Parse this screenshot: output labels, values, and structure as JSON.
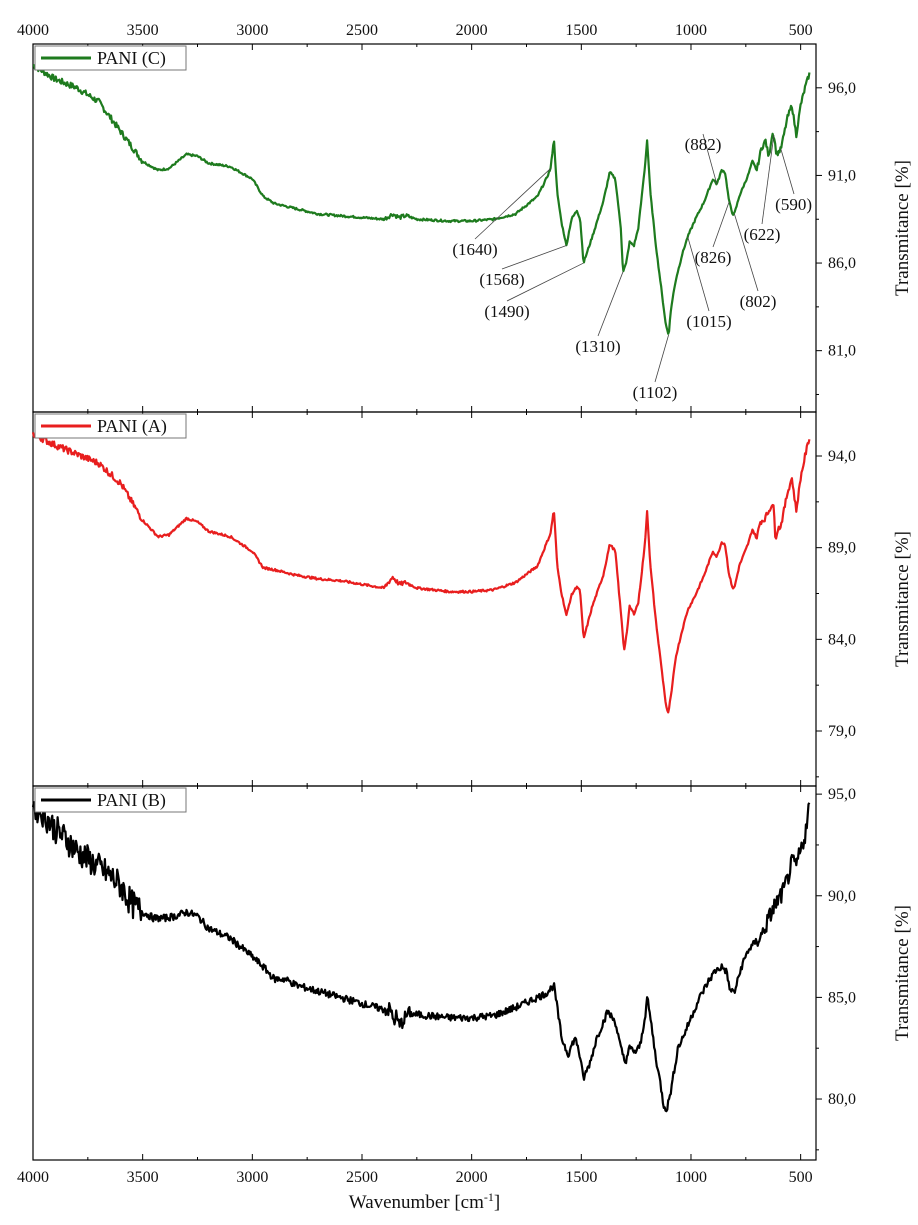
{
  "chart_data": [
    {
      "type": "line",
      "panel": "top",
      "series": [
        {
          "name": "PANI (C)",
          "color": "#1e7b1e"
        }
      ],
      "ylabel": "Transmitance [%]",
      "xlim": [
        4000,
        430
      ],
      "ylim": [
        77.5,
        98.5
      ],
      "yticks": [
        96.0,
        91.0,
        86.0,
        81.0
      ],
      "ytick_labels": [
        "96,0",
        "91,0",
        "86,0",
        "81,0"
      ],
      "legend_placement": "top-left",
      "points": [
        [
          4000,
          97.3
        ],
        [
          3900,
          96.5
        ],
        [
          3800,
          96.0
        ],
        [
          3700,
          95.2
        ],
        [
          3600,
          93.5
        ],
        [
          3500,
          91.8
        ],
        [
          3430,
          91.3
        ],
        [
          3380,
          91.4
        ],
        [
          3300,
          92.2
        ],
        [
          3250,
          92.1
        ],
        [
          3200,
          91.7
        ],
        [
          3100,
          91.5
        ],
        [
          3000,
          90.8
        ],
        [
          2950,
          89.8
        ],
        [
          2900,
          89.4
        ],
        [
          2800,
          89.1
        ],
        [
          2700,
          88.8
        ],
        [
          2600,
          88.7
        ],
        [
          2500,
          88.6
        ],
        [
          2400,
          88.5
        ],
        [
          2360,
          88.8
        ],
        [
          2330,
          88.6
        ],
        [
          2300,
          88.7
        ],
        [
          2250,
          88.5
        ],
        [
          2100,
          88.4
        ],
        [
          2000,
          88.4
        ],
        [
          1900,
          88.5
        ],
        [
          1800,
          88.8
        ],
        [
          1700,
          89.8
        ],
        [
          1660,
          90.8
        ],
        [
          1640,
          91.4
        ],
        [
          1625,
          93.1
        ],
        [
          1610,
          90.0
        ],
        [
          1590,
          88.3
        ],
        [
          1568,
          87.0
        ],
        [
          1545,
          88.5
        ],
        [
          1520,
          89.0
        ],
        [
          1505,
          88.5
        ],
        [
          1490,
          86.0
        ],
        [
          1450,
          87.5
        ],
        [
          1400,
          89.5
        ],
        [
          1370,
          91.2
        ],
        [
          1345,
          90.8
        ],
        [
          1320,
          88.0
        ],
        [
          1310,
          85.5
        ],
        [
          1295,
          86.0
        ],
        [
          1280,
          87.2
        ],
        [
          1260,
          87.0
        ],
        [
          1240,
          88.0
        ],
        [
          1210,
          91.5
        ],
        [
          1200,
          93.0
        ],
        [
          1185,
          90.0
        ],
        [
          1160,
          87.0
        ],
        [
          1130,
          84.0
        ],
        [
          1115,
          82.5
        ],
        [
          1102,
          81.9
        ],
        [
          1090,
          83.5
        ],
        [
          1070,
          85.0
        ],
        [
          1040,
          86.5
        ],
        [
          1015,
          87.5
        ],
        [
          980,
          88.5
        ],
        [
          940,
          89.5
        ],
        [
          900,
          90.8
        ],
        [
          882,
          90.5
        ],
        [
          860,
          91.3
        ],
        [
          845,
          91.2
        ],
        [
          826,
          89.5
        ],
        [
          810,
          88.8
        ],
        [
          802,
          88.8
        ],
        [
          780,
          89.8
        ],
        [
          740,
          91.0
        ],
        [
          720,
          91.8
        ],
        [
          700,
          91.3
        ],
        [
          680,
          92.5
        ],
        [
          660,
          93.0
        ],
        [
          645,
          92.0
        ],
        [
          630,
          93.4
        ],
        [
          622,
          93.3
        ],
        [
          610,
          92.2
        ],
        [
          590,
          92.5
        ],
        [
          560,
          94.3
        ],
        [
          540,
          95.0
        ],
        [
          520,
          93.3
        ],
        [
          500,
          95.0
        ],
        [
          480,
          96.0
        ],
        [
          460,
          96.8
        ]
      ],
      "annotations": [
        {
          "label": "(1640)",
          "x": 1640
        },
        {
          "label": "(1568)",
          "x": 1568
        },
        {
          "label": "(1490)",
          "x": 1490
        },
        {
          "label": "(1310)",
          "x": 1310
        },
        {
          "label": "(1102)",
          "x": 1102
        },
        {
          "label": "(1015)",
          "x": 1015
        },
        {
          "label": "(882)",
          "x": 882
        },
        {
          "label": "(826)",
          "x": 826
        },
        {
          "label": "(802)",
          "x": 802
        },
        {
          "label": "(622)",
          "x": 622
        },
        {
          "label": "(590)",
          "x": 590
        }
      ]
    },
    {
      "type": "line",
      "panel": "middle",
      "series": [
        {
          "name": "PANI (A)",
          "color": "#e81e1e"
        }
      ],
      "ylabel": "Transmitance [%]",
      "xlim": [
        4000,
        430
      ],
      "ylim": [
        76.0,
        96.4
      ],
      "yticks": [
        94.0,
        89.0,
        84.0,
        79.0
      ],
      "ytick_labels": [
        "94,0",
        "89,0",
        "84,0",
        "79,0"
      ],
      "legend_placement": "top-left",
      "points": [
        [
          4000,
          95.2
        ],
        [
          3900,
          94.6
        ],
        [
          3800,
          94.1
        ],
        [
          3700,
          93.6
        ],
        [
          3600,
          92.5
        ],
        [
          3500,
          90.5
        ],
        [
          3430,
          89.6
        ],
        [
          3380,
          89.7
        ],
        [
          3300,
          90.6
        ],
        [
          3250,
          90.4
        ],
        [
          3200,
          89.9
        ],
        [
          3100,
          89.6
        ],
        [
          3000,
          88.8
        ],
        [
          2950,
          87.9
        ],
        [
          2900,
          87.8
        ],
        [
          2800,
          87.5
        ],
        [
          2700,
          87.3
        ],
        [
          2600,
          87.2
        ],
        [
          2500,
          87.0
        ],
        [
          2400,
          86.8
        ],
        [
          2360,
          87.4
        ],
        [
          2330,
          87.0
        ],
        [
          2300,
          87.1
        ],
        [
          2250,
          86.8
        ],
        [
          2100,
          86.6
        ],
        [
          2000,
          86.6
        ],
        [
          1900,
          86.7
        ],
        [
          1800,
          87.1
        ],
        [
          1700,
          88.0
        ],
        [
          1660,
          89.2
        ],
        [
          1640,
          89.8
        ],
        [
          1625,
          91.1
        ],
        [
          1610,
          88.0
        ],
        [
          1590,
          86.5
        ],
        [
          1568,
          85.3
        ],
        [
          1545,
          86.4
        ],
        [
          1520,
          86.9
        ],
        [
          1505,
          86.6
        ],
        [
          1490,
          84.0
        ],
        [
          1450,
          85.8
        ],
        [
          1400,
          87.5
        ],
        [
          1370,
          89.2
        ],
        [
          1345,
          88.8
        ],
        [
          1320,
          85.5
        ],
        [
          1305,
          83.4
        ],
        [
          1290,
          84.6
        ],
        [
          1280,
          85.8
        ],
        [
          1260,
          85.4
        ],
        [
          1240,
          86.0
        ],
        [
          1210,
          89.2
        ],
        [
          1200,
          91.0
        ],
        [
          1185,
          88.0
        ],
        [
          1160,
          85.0
        ],
        [
          1130,
          82.0
        ],
        [
          1115,
          80.5
        ],
        [
          1105,
          79.9
        ],
        [
          1090,
          81.0
        ],
        [
          1070,
          83.0
        ],
        [
          1040,
          84.5
        ],
        [
          1015,
          85.6
        ],
        [
          980,
          86.4
        ],
        [
          940,
          87.5
        ],
        [
          900,
          88.8
        ],
        [
          882,
          88.5
        ],
        [
          860,
          89.3
        ],
        [
          845,
          89.2
        ],
        [
          826,
          87.5
        ],
        [
          810,
          86.8
        ],
        [
          802,
          86.8
        ],
        [
          780,
          88.0
        ],
        [
          740,
          89.2
        ],
        [
          720,
          90.0
        ],
        [
          700,
          89.5
        ],
        [
          685,
          90.4
        ],
        [
          672,
          90.5
        ],
        [
          670,
          84.0
        ],
        [
          668,
          90.5
        ],
        [
          645,
          91.0
        ],
        [
          630,
          91.4
        ],
        [
          622,
          91.1
        ],
        [
          615,
          89.5
        ],
        [
          605,
          90.0
        ],
        [
          590,
          90.2
        ],
        [
          560,
          92.0
        ],
        [
          540,
          92.8
        ],
        [
          520,
          91.0
        ],
        [
          500,
          92.8
        ],
        [
          480,
          94.0
        ],
        [
          460,
          95.0
        ]
      ]
    },
    {
      "type": "line",
      "panel": "bottom",
      "series": [
        {
          "name": "PANI (B)",
          "color": "#000000"
        }
      ],
      "xlabel": "Wavenumber [cm",
      "xlabel_superscript": "-1",
      "xlabel_suffix": "]",
      "ylabel": "Transmitance [%]",
      "xlim": [
        4000,
        430
      ],
      "ylim": [
        77.0,
        95.4
      ],
      "yticks": [
        95.0,
        90.0,
        85.0,
        80.0
      ],
      "ytick_labels": [
        "95,0",
        "90,0",
        "85,0",
        "80,0"
      ],
      "xticks": [
        4000,
        3500,
        3000,
        2500,
        2000,
        1500,
        1000,
        500
      ],
      "xtick_labels": [
        "4000",
        "3500",
        "3000",
        "2500",
        "2000",
        "1500",
        "1000",
        "500"
      ],
      "legend_placement": "top-left",
      "points": [
        [
          4000,
          94.5
        ],
        [
          3950,
          94.0
        ],
        [
          3900,
          93.3
        ],
        [
          3850,
          92.8
        ],
        [
          3800,
          92.2
        ],
        [
          3750,
          91.8
        ],
        [
          3700,
          91.4
        ],
        [
          3650,
          91.0
        ],
        [
          3600,
          90.5
        ],
        [
          3550,
          89.6
        ],
        [
          3500,
          89.2
        ],
        [
          3450,
          88.9
        ],
        [
          3400,
          88.9
        ],
        [
          3350,
          89.0
        ],
        [
          3300,
          89.2
        ],
        [
          3250,
          89.0
        ],
        [
          3200,
          88.4
        ],
        [
          3100,
          87.9
        ],
        [
          3000,
          87.0
        ],
        [
          2950,
          86.5
        ],
        [
          2900,
          85.9
        ],
        [
          2850,
          85.9
        ],
        [
          2800,
          85.6
        ],
        [
          2700,
          85.3
        ],
        [
          2600,
          85.0
        ],
        [
          2500,
          84.7
        ],
        [
          2400,
          84.4
        ],
        [
          2370,
          84.4
        ],
        [
          2355,
          83.8
        ],
        [
          2345,
          84.1
        ],
        [
          2330,
          83.6
        ],
        [
          2310,
          83.9
        ],
        [
          2290,
          84.2
        ],
        [
          2200,
          84.1
        ],
        [
          2100,
          84.0
        ],
        [
          2000,
          84.0
        ],
        [
          1900,
          84.1
        ],
        [
          1800,
          84.5
        ],
        [
          1700,
          85.0
        ],
        [
          1660,
          85.2
        ],
        [
          1625,
          85.6
        ],
        [
          1610,
          84.5
        ],
        [
          1590,
          83.0
        ],
        [
          1560,
          82.2
        ],
        [
          1530,
          83.0
        ],
        [
          1515,
          82.6
        ],
        [
          1490,
          81.0
        ],
        [
          1460,
          81.8
        ],
        [
          1430,
          83.0
        ],
        [
          1380,
          84.3
        ],
        [
          1345,
          83.8
        ],
        [
          1320,
          82.5
        ],
        [
          1300,
          81.8
        ],
        [
          1280,
          82.5
        ],
        [
          1250,
          82.3
        ],
        [
          1230,
          82.7
        ],
        [
          1205,
          84.4
        ],
        [
          1200,
          85.0
        ],
        [
          1185,
          84.0
        ],
        [
          1160,
          82.0
        ],
        [
          1140,
          80.8
        ],
        [
          1125,
          79.7
        ],
        [
          1110,
          79.5
        ],
        [
          1090,
          80.5
        ],
        [
          1060,
          82.5
        ],
        [
          1030,
          83.2
        ],
        [
          1000,
          84.0
        ],
        [
          960,
          85.0
        ],
        [
          920,
          85.8
        ],
        [
          890,
          86.3
        ],
        [
          860,
          86.5
        ],
        [
          840,
          86.3
        ],
        [
          820,
          85.3
        ],
        [
          800,
          85.3
        ],
        [
          770,
          86.5
        ],
        [
          740,
          87.3
        ],
        [
          700,
          87.8
        ],
        [
          680,
          88.0
        ],
        [
          660,
          88.5
        ],
        [
          640,
          89.0
        ],
        [
          620,
          89.5
        ],
        [
          600,
          89.8
        ],
        [
          580,
          90.2
        ],
        [
          560,
          90.8
        ],
        [
          540,
          91.6
        ],
        [
          520,
          91.5
        ],
        [
          500,
          92.2
        ],
        [
          480,
          93.0
        ],
        [
          460,
          94.5
        ]
      ]
    }
  ]
}
